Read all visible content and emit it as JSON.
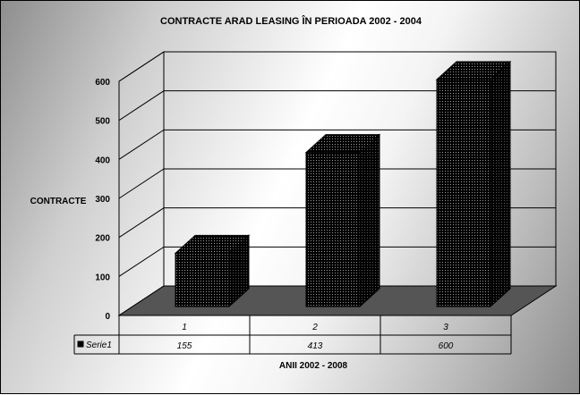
{
  "chart_data": {
    "type": "bar",
    "title": "CONTRACTE ARAD LEASING ÎN PERIOADA 2002 - 2004",
    "ylabel": "CONTRACTE",
    "xlabel": "ANII 2002 - 2008",
    "categories": [
      "1",
      "2",
      "3"
    ],
    "series": [
      {
        "name": "Serie1",
        "values": [
          155,
          413,
          600
        ]
      }
    ],
    "yticks": [
      "0",
      "100",
      "200",
      "300",
      "400",
      "500",
      "600"
    ],
    "ylim": [
      0,
      600
    ],
    "grid": true,
    "legend": "data-table-left",
    "data_table": {
      "series_label": "Serie1",
      "values": [
        "155",
        "413",
        "600"
      ]
    },
    "colors": {
      "bar": "#000000",
      "floor": "#555555"
    }
  }
}
